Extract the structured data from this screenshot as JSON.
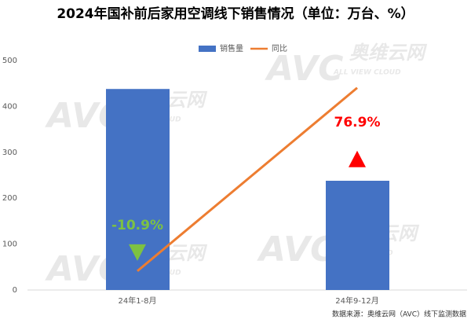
{
  "chart_data": {
    "type": "bar-line",
    "title": "2024年国补前后家用空调线下销售情况（单位：万台、%）",
    "categories": [
      "24年1-8月",
      "24年9-12月"
    ],
    "series": [
      {
        "name": "销售量",
        "type": "bar",
        "color": "#4472c4",
        "values": [
          438,
          238
        ]
      },
      {
        "name": "同比",
        "type": "line",
        "color": "#ed7d31",
        "axis": "y2",
        "values": [
          -10.9,
          76.9
        ],
        "value_labels": [
          "-10.9%",
          "76.9%"
        ]
      }
    ],
    "ylim": [
      0,
      500
    ],
    "yticks": [
      0,
      100,
      200,
      300,
      400,
      500
    ],
    "y2lim": [
      -20,
      90
    ],
    "grid": false,
    "legend": "top",
    "source": "数据来源：奥维云网（AVC）线下监测数据",
    "watermark": {
      "brand": "奥维云网",
      "logo": "AVC",
      "tagline": "ALL VIEW CLOUD"
    }
  }
}
